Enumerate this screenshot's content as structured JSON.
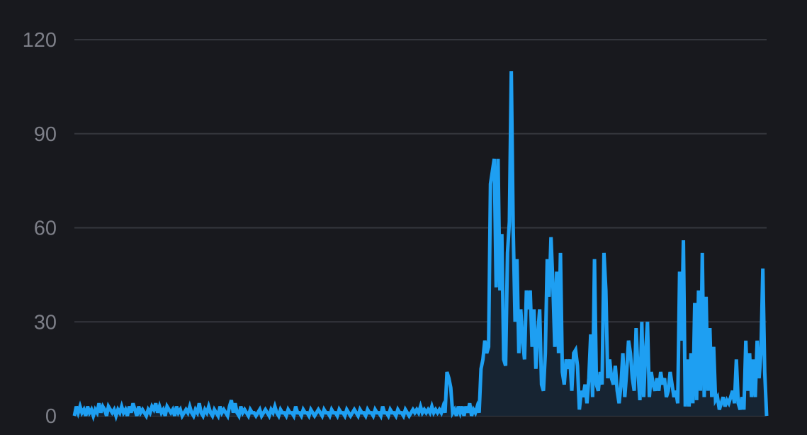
{
  "chart_data": {
    "type": "line",
    "title": "",
    "xlabel": "",
    "ylabel": "",
    "ylim": [
      0,
      120
    ],
    "y_ticks": [
      "0",
      "30",
      "60",
      "90",
      "120"
    ],
    "grid": true,
    "legend": "none",
    "colors": {
      "background": "#18191e",
      "line": "#1e9ff2",
      "grid": "#34363d",
      "tick_label": "#7d7f88",
      "fill": "#172634"
    },
    "series": [
      {
        "values": [
          0,
          3,
          1,
          3,
          1,
          2,
          0,
          3,
          1,
          2,
          0,
          2,
          1,
          4,
          1,
          3,
          2,
          0,
          3,
          2,
          1,
          2,
          0,
          2,
          1,
          3,
          1,
          2,
          0,
          3,
          1,
          4,
          2,
          0,
          3,
          1,
          2,
          1,
          0,
          2,
          1,
          3,
          2,
          4,
          1,
          3,
          1,
          2,
          0,
          3,
          2,
          1,
          2,
          0,
          3,
          1,
          2,
          0,
          1,
          2,
          1,
          3,
          1,
          0,
          2,
          1,
          4,
          1,
          0,
          2,
          1,
          3,
          1,
          0,
          2,
          1,
          0,
          3,
          1,
          2,
          1,
          0,
          3,
          5,
          1,
          4,
          1,
          0,
          3,
          1,
          2,
          1,
          0,
          2,
          1,
          1,
          0,
          1,
          2,
          0,
          1,
          2,
          1,
          0,
          2,
          1,
          3,
          1,
          0,
          2,
          1,
          1,
          0,
          2,
          1,
          1,
          0,
          3,
          1,
          1,
          0,
          2,
          1,
          1,
          0,
          2,
          1,
          0,
          1,
          2,
          1,
          0,
          2,
          1,
          1,
          0,
          2,
          1,
          1,
          0,
          2,
          1,
          1,
          0,
          2,
          1,
          0,
          1,
          2,
          1,
          0,
          2,
          1,
          1,
          0,
          2,
          1,
          1,
          0,
          2,
          1,
          1,
          0,
          3,
          1,
          1,
          0,
          2,
          1,
          1,
          0,
          2,
          1,
          1,
          0,
          2,
          1,
          0,
          1,
          2,
          1,
          2,
          1,
          3,
          1,
          2,
          1,
          2,
          1,
          3,
          1,
          2,
          1,
          2,
          1,
          3,
          1,
          14,
          12,
          9,
          1,
          2,
          0,
          3,
          1,
          3,
          0,
          3,
          1,
          4,
          0,
          2,
          1,
          3,
          1,
          15,
          18,
          24,
          20,
          22,
          74,
          78,
          82,
          41,
          82,
          40,
          58,
          18,
          16,
          52,
          62,
          110,
          60,
          30,
          50,
          20,
          34,
          24,
          18,
          40,
          34,
          40,
          22,
          34,
          15,
          26,
          34,
          10,
          8,
          20,
          50,
          38,
          57,
          42,
          22,
          46,
          20,
          52,
          14,
          10,
          18,
          15,
          18,
          8,
          20,
          21,
          16,
          2,
          8,
          6,
          10,
          4,
          12,
          26,
          6,
          50,
          10,
          8,
          14,
          10,
          52,
          40,
          12,
          18,
          12,
          10,
          16,
          8,
          4,
          10,
          20,
          6,
          14,
          24,
          20,
          12,
          8,
          28,
          14,
          5,
          30,
          6,
          20,
          30,
          6,
          14,
          10,
          8,
          12,
          8,
          14,
          10,
          12,
          6,
          8,
          14,
          10,
          6,
          8,
          4,
          46,
          24,
          56,
          3,
          18,
          3,
          20,
          4,
          36,
          5,
          40,
          8,
          52,
          6,
          38,
          8,
          28,
          6,
          22,
          5,
          6,
          2,
          4,
          6,
          3,
          5,
          4,
          6,
          8,
          4,
          18,
          4,
          2,
          6,
          2,
          24,
          8,
          20,
          6,
          18,
          6,
          24,
          12,
          20,
          47,
          14,
          0
        ]
      }
    ]
  }
}
